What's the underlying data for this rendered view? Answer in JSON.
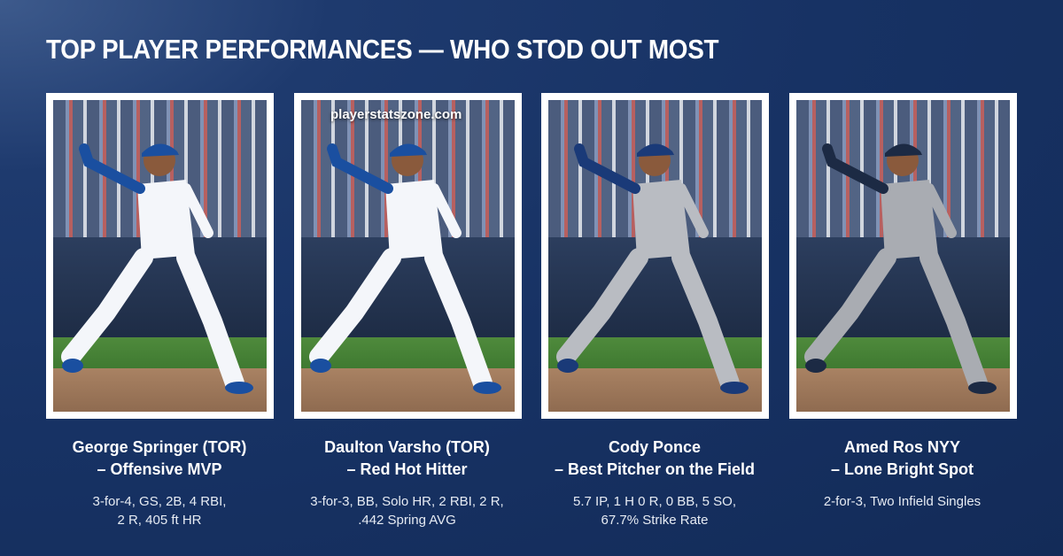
{
  "header": {
    "title": "TOP PLAYER PERFORMANCES — WHO STOD OUT MOST"
  },
  "watermark": "playerstatszone.com",
  "cards": [
    {
      "name": "George Springer (TOR)",
      "role": "– Offensive MVP",
      "stats": [
        "3-for-4, GS, 2B, 4 RBI,",
        "2 R, 405 ft HR"
      ]
    },
    {
      "name": "Daulton Varsho (TOR)",
      "role": "– Red Hot Hitter",
      "stats": [
        "3-for-3, BB, Solo HR, 2 RBI, 2 R,",
        ".442 Spring AVG"
      ]
    },
    {
      "name": "Cody Ponce",
      "role": "– Best Pitcher on the Field",
      "stats": [
        "5.7 IP, 1 H 0 R, 0 BB, 5 SO,",
        "67.7% Strike Rate"
      ]
    },
    {
      "name": "Amed Ros NYY",
      "role": "– Lone Bright Spot",
      "stats": [
        "2-for-3, Two Infield Singles"
      ]
    }
  ]
}
